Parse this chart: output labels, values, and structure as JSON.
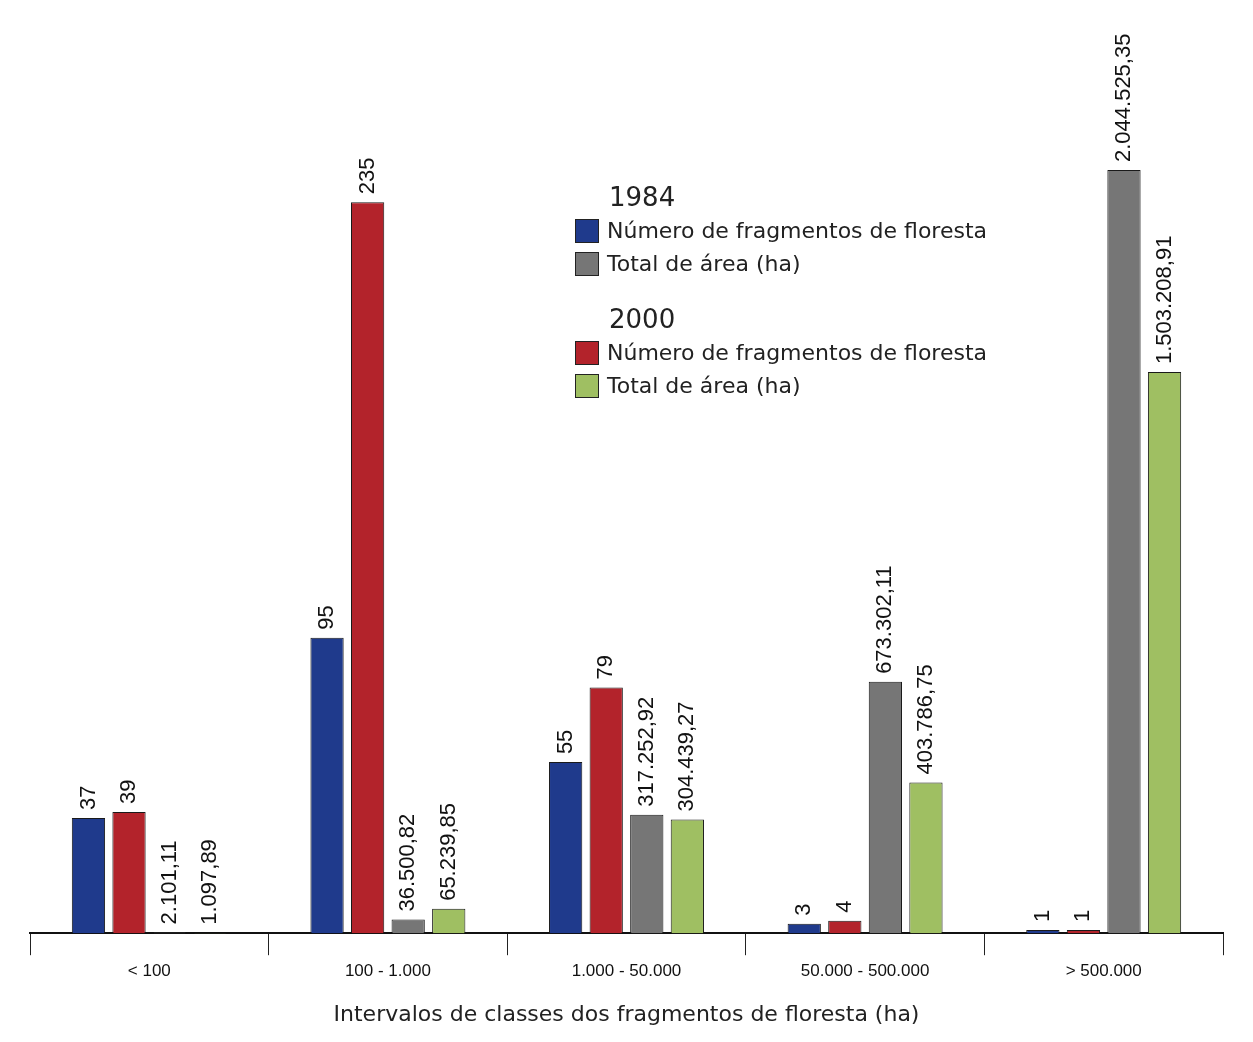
{
  "chart_data": {
    "type": "bar",
    "xlabel": "Intervalos de classes dos fragmentos de floresta (ha)",
    "categories": [
      "< 100",
      "100 - 1.000",
      "1.000 - 50.000",
      "50.000 - 500.000",
      "> 500.000"
    ],
    "series": [
      {
        "name": "Número de fragmentos de floresta",
        "color": "#1f3a8c",
        "values": [
          37,
          95,
          55,
          3,
          1
        ],
        "value_labels": [
          "37",
          "95",
          "55",
          "3",
          "1"
        ]
      },
      {
        "name": "Número de fragmentos de floresta",
        "color": "#b3232b",
        "values": [
          39,
          235,
          79,
          4,
          1
        ],
        "value_labels": [
          "39",
          "235",
          "79",
          "4",
          "1"
        ]
      },
      {
        "name": "Total de área (ha)",
        "color": "#767676",
        "axis": "y2",
        "values": [
          2101.11,
          36500.82,
          317252.92,
          673302.11,
          2044525.35
        ],
        "value_labels": [
          "2.101,11",
          "36.500,82",
          "317.252,92",
          "673.302,11",
          "2.044.525,35"
        ]
      },
      {
        "name": "Total de área (ha)",
        "color": "#9fbf62",
        "axis": "y2",
        "values": [
          1097.89,
          65239.85,
          304439.27,
          403786.75,
          1503208.91
        ],
        "value_labels": [
          "1.097,89",
          "65.239,85",
          "304.439,27",
          "403.786,75",
          "1.503.208,91"
        ]
      }
    ],
    "annotations": [
      "1984",
      "2000"
    ],
    "tick_labels": "x",
    "grid": false,
    "legend": "top"
  }
}
